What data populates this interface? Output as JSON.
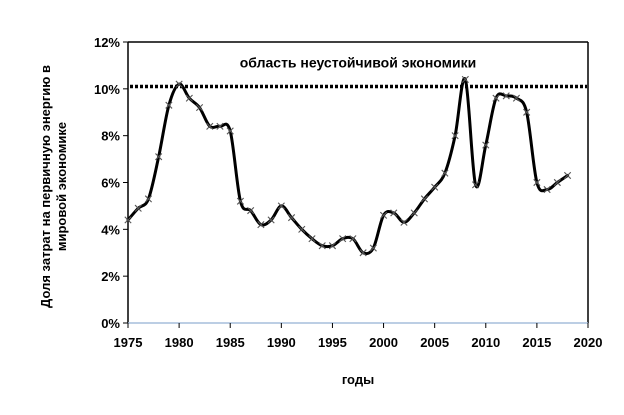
{
  "chart_data": {
    "type": "line",
    "title": "",
    "xlabel": "годы",
    "ylabel_lines": [
      "Доля затрат на первичную энергию в",
      "мировой экономике"
    ],
    "xlim": [
      1975,
      2020
    ],
    "ylim": [
      0,
      12
    ],
    "x_ticks": [
      1975,
      1980,
      1985,
      1990,
      1995,
      2000,
      2005,
      2010,
      2015,
      2020
    ],
    "x_tick_labels": [
      "1975",
      "1980",
      "1985",
      "1990",
      "1995",
      "2000",
      "2005",
      "2010",
      "2015",
      "2020"
    ],
    "y_ticks": [
      0,
      2,
      4,
      6,
      8,
      10,
      12
    ],
    "y_tick_labels": [
      "0%",
      "2%",
      "4%",
      "6%",
      "8%",
      "10%",
      "12%"
    ],
    "grid": false,
    "legend": "none",
    "series": [
      {
        "marker": "x",
        "color": "#000000",
        "x": [
          1975,
          1976,
          1977,
          1978,
          1979,
          1980,
          1981,
          1982,
          1983,
          1984,
          1985,
          1986,
          1987,
          1988,
          1989,
          1990,
          1991,
          1992,
          1993,
          1994,
          1995,
          1996,
          1997,
          1998,
          1999,
          2000,
          2001,
          2002,
          2003,
          2004,
          2005,
          2006,
          2007,
          2008,
          2009,
          2010,
          2011,
          2012,
          2013,
          2014,
          2015,
          2016,
          2017,
          2018
        ],
        "y": [
          4.4,
          4.9,
          5.3,
          7.1,
          9.3,
          10.2,
          9.6,
          9.2,
          8.4,
          8.4,
          8.2,
          5.2,
          4.8,
          4.2,
          4.4,
          5.0,
          4.5,
          4.0,
          3.6,
          3.3,
          3.3,
          3.6,
          3.6,
          3.0,
          3.2,
          4.6,
          4.7,
          4.3,
          4.7,
          5.3,
          5.8,
          6.4,
          8.0,
          10.4,
          5.9,
          7.6,
          9.6,
          9.7,
          9.6,
          9.0,
          6.0,
          5.7,
          6.0,
          6.3
        ]
      }
    ],
    "threshold": {
      "value": 10.1,
      "style": "dotted",
      "label": "область неустойчивой экономики"
    },
    "colors": {
      "line": "#000000",
      "axis": "#000000",
      "baseline": "#a6bedc",
      "background": "#ffffff"
    }
  }
}
